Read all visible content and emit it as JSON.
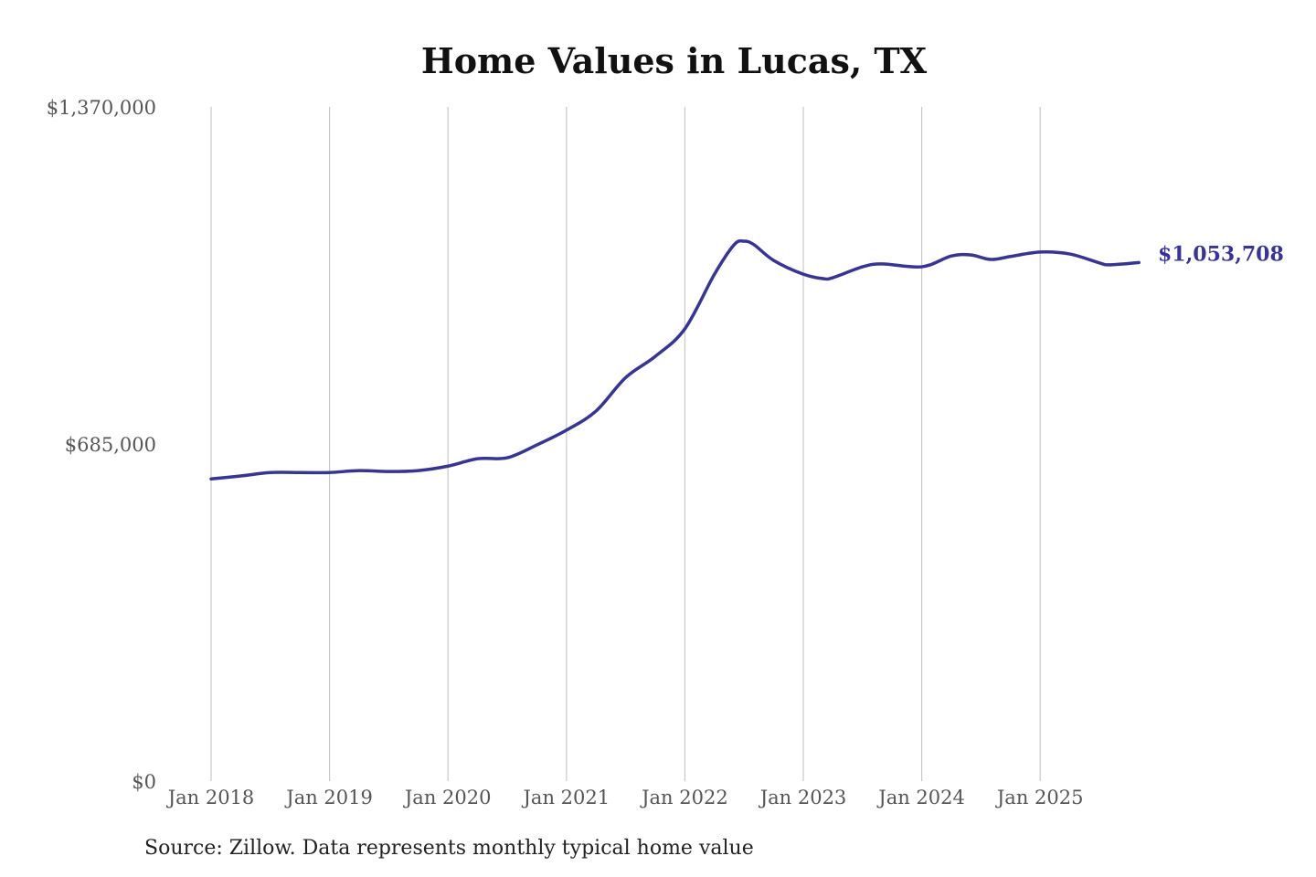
{
  "chart_data": {
    "type": "line",
    "title": "Home Values in Lucas, TX",
    "xlabel": "",
    "ylabel": "",
    "ylim": [
      0,
      1370000
    ],
    "y_ticks": [
      {
        "value": 0,
        "label": "$0"
      },
      {
        "value": 685000,
        "label": "$685,000"
      },
      {
        "value": 1370000,
        "label": "$1,370,000"
      }
    ],
    "x_ticks": [
      {
        "date": "2018-01",
        "label": "Jan 2018"
      },
      {
        "date": "2019-01",
        "label": "Jan 2019"
      },
      {
        "date": "2020-01",
        "label": "Jan 2020"
      },
      {
        "date": "2021-01",
        "label": "Jan 2021"
      },
      {
        "date": "2022-01",
        "label": "Jan 2022"
      },
      {
        "date": "2023-01",
        "label": "Jan 2023"
      },
      {
        "date": "2024-01",
        "label": "Jan 2024"
      },
      {
        "date": "2025-01",
        "label": "Jan 2025"
      }
    ],
    "grid": "vertical",
    "line_color": "#37339a",
    "end_label": "$1,053,708",
    "points": [
      [
        "2018-01",
        614000
      ],
      [
        "2018-04",
        620000
      ],
      [
        "2018-07",
        627000
      ],
      [
        "2018-10",
        627000
      ],
      [
        "2019-01",
        627000
      ],
      [
        "2019-04",
        631000
      ],
      [
        "2019-07",
        629000
      ],
      [
        "2019-10",
        631000
      ],
      [
        "2020-01",
        640000
      ],
      [
        "2020-04",
        655000
      ],
      [
        "2020-07",
        657000
      ],
      [
        "2020-10",
        683000
      ],
      [
        "2021-01",
        713000
      ],
      [
        "2021-04",
        752000
      ],
      [
        "2021-07",
        820000
      ],
      [
        "2021-10",
        863000
      ],
      [
        "2022-01",
        919000
      ],
      [
        "2022-04",
        1030000
      ],
      [
        "2022-06",
        1090000
      ],
      [
        "2022-07",
        1097000
      ],
      [
        "2022-08",
        1090000
      ],
      [
        "2022-10",
        1058000
      ],
      [
        "2023-01",
        1030000
      ],
      [
        "2023-03",
        1021000
      ],
      [
        "2023-04",
        1023000
      ],
      [
        "2023-07",
        1045000
      ],
      [
        "2023-09",
        1051000
      ],
      [
        "2024-01",
        1045000
      ],
      [
        "2024-04",
        1067000
      ],
      [
        "2024-06",
        1069000
      ],
      [
        "2024-08",
        1060000
      ],
      [
        "2024-10",
        1066000
      ],
      [
        "2025-01",
        1075000
      ],
      [
        "2025-04",
        1071000
      ],
      [
        "2025-07",
        1053000
      ],
      [
        "2025-08",
        1049000
      ],
      [
        "2025-11",
        1053708
      ]
    ]
  },
  "source": "Source: Zillow. Data represents monthly typical home value"
}
